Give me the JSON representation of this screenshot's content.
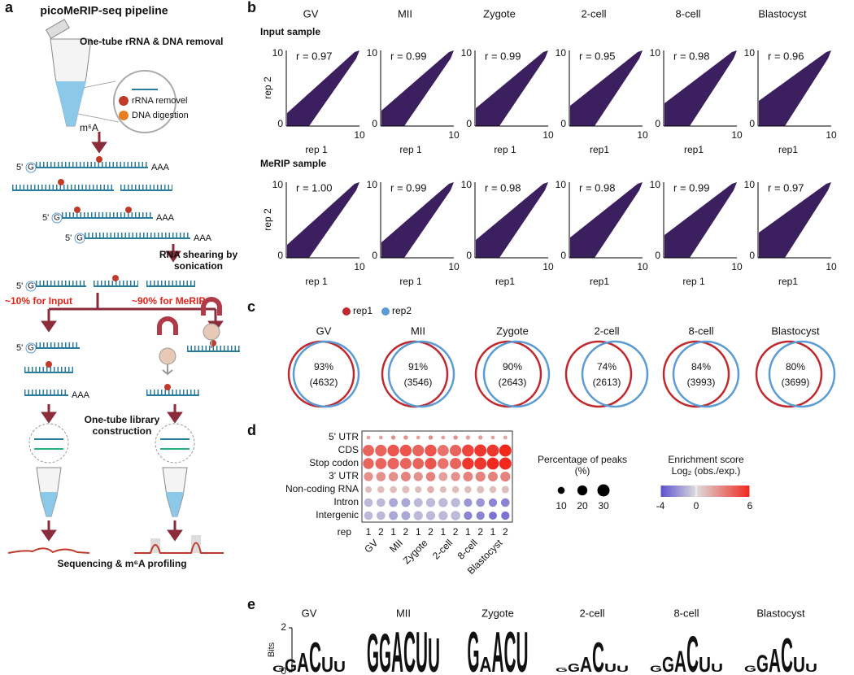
{
  "panel_a": {
    "letter": "a",
    "title": "picoMeRIP-seq pipeline",
    "step1": "One-tube rRNA & DNA removal",
    "rrna": "rRNA removel",
    "dna": "DNA digestion",
    "m6a": "m⁶A",
    "five_prime": "5'",
    "g": "G",
    "aaa": "AAA",
    "step2": [
      "RNA shearing by",
      "sonication"
    ],
    "input": "~10% for Input",
    "merip": "~90% for MeRIP",
    "step3": [
      "One-tube library",
      "construction"
    ],
    "step4": "Sequencing & m⁶A profiling"
  },
  "stages": [
    "GV",
    "MII",
    "Zygote",
    "2-cell",
    "8-cell",
    "Blastocyst"
  ],
  "panel_b": {
    "letter": "b",
    "tick_min": 0,
    "tick_max": 10,
    "rows": [
      {
        "title": "Input sample",
        "y_label": "rep 2",
        "x_labels": [
          "rep 1",
          "rep 1",
          "rep 1",
          "rep1",
          "rep1",
          "rep1"
        ],
        "r": [
          "r = 0.97",
          "r = 0.99",
          "r = 0.99",
          "r = 0.95",
          "r = 0.98",
          "r = 0.96"
        ]
      },
      {
        "title": "MeRIP sample",
        "y_label": "rep 2",
        "x_labels": [
          "rep 1",
          "rep 1",
          "rep1",
          "rep1",
          "rep 1",
          "rep1"
        ],
        "r": [
          "r = 1.00",
          "r = 0.99",
          "r = 0.98",
          "r = 0.98",
          "r = 0.99",
          "r = 0.97"
        ]
      }
    ]
  },
  "panel_c": {
    "letter": "c",
    "legend": [
      "rep1",
      "rep2"
    ],
    "percent": [
      "93%",
      "91%",
      "90%",
      "74%",
      "84%",
      "80%"
    ],
    "counts": [
      "(4632)",
      "(3546)",
      "(2643)",
      "(2613)",
      "(3993)",
      "(3699)"
    ]
  },
  "panel_d": {
    "letter": "d",
    "rows": [
      "5' UTR",
      "CDS",
      "Stop codon",
      "3' UTR",
      "Non-coding RNA",
      "Intron",
      "Intergenic"
    ],
    "rep_label": "rep",
    "reps": [
      "1",
      "2"
    ],
    "size": [
      [
        3,
        3,
        4,
        4,
        3,
        4,
        3,
        4,
        4,
        4,
        3,
        3
      ],
      [
        26,
        27,
        28,
        28,
        27,
        28,
        26,
        27,
        29,
        30,
        29,
        30
      ],
      [
        24,
        25,
        27,
        26,
        25,
        27,
        24,
        26,
        28,
        30,
        29,
        30
      ],
      [
        17,
        18,
        18,
        19,
        17,
        18,
        16,
        17,
        19,
        20,
        19,
        20
      ],
      [
        9,
        10,
        10,
        11,
        9,
        10,
        9,
        10,
        10,
        11,
        10,
        11
      ],
      [
        15,
        15,
        16,
        16,
        16,
        17,
        17,
        17,
        14,
        15,
        14,
        15
      ],
      [
        15,
        15,
        16,
        16,
        17,
        17,
        17,
        18,
        14,
        14,
        13,
        14
      ]
    ],
    "score": [
      [
        2,
        2,
        2.5,
        2.5,
        2,
        2.5,
        2,
        2.5,
        2,
        2,
        2,
        2
      ],
      [
        4,
        4,
        4.5,
        4.5,
        4,
        4.5,
        3.5,
        4,
        5,
        5.5,
        5.5,
        6
      ],
      [
        4,
        4,
        4,
        4,
        4,
        4.5,
        3.5,
        4,
        5.5,
        5.5,
        6,
        6
      ],
      [
        2.5,
        2.5,
        2.5,
        3,
        2.5,
        3,
        2,
        2.5,
        3,
        3,
        3,
        3
      ],
      [
        1,
        1,
        1,
        1,
        1,
        1.5,
        1,
        1,
        1,
        1,
        1,
        1
      ],
      [
        -1,
        -1,
        -1.5,
        -1.5,
        -1,
        -1,
        -1,
        -1,
        -2,
        -2,
        -2.5,
        -2.5
      ],
      [
        -1,
        -1,
        -1.5,
        -1.5,
        -1,
        -1,
        -1,
        -1,
        -2.5,
        -2.5,
        -3,
        -3
      ]
    ],
    "size_title": [
      "Percentage of peaks",
      "(%)"
    ],
    "size_legend": [
      10,
      20,
      30
    ],
    "color_title": [
      "Enrichment score",
      "Log₂ (obs./exp.)"
    ],
    "color_legend": [
      -4,
      0,
      6
    ],
    "colors": [
      "#5a4fcf",
      "#dcdcdc",
      "#f0281e"
    ]
  },
  "panel_e": {
    "letter": "e",
    "y_label": "Bits",
    "yticks": [
      0,
      2
    ],
    "letter_colors": {
      "A": "#1e9c3a",
      "C": "#1f3fd6",
      "G": "#f2a20c",
      "U": "#e3231b"
    },
    "logos": [
      {
        "letters": [
          "G",
          "G",
          "A",
          "C",
          "U",
          "U"
        ],
        "bits": [
          0.3,
          0.6,
          0.9,
          1.4,
          0.7,
          0.5
        ]
      },
      {
        "letters": [
          "G",
          "G",
          "A",
          "C",
          "U",
          "U"
        ],
        "bits": [
          1.8,
          1.8,
          1.9,
          1.9,
          1.9,
          1.6
        ]
      },
      {
        "letters": [
          "G",
          "A",
          "A",
          "C",
          "U"
        ],
        "bits": [
          1.9,
          0.7,
          1.9,
          1.9,
          1.9
        ]
      },
      {
        "letters": [
          "G",
          "G",
          "A",
          "C",
          "U",
          "U"
        ],
        "bits": [
          0.2,
          0.4,
          0.7,
          1.4,
          0.4,
          0.3
        ]
      },
      {
        "letters": [
          "G",
          "G",
          "A",
          "C",
          "U",
          "U"
        ],
        "bits": [
          0.3,
          0.7,
          1.0,
          1.7,
          0.7,
          0.4
        ]
      },
      {
        "letters": [
          "G",
          "G",
          "A",
          "C",
          "U",
          "U"
        ],
        "bits": [
          0.3,
          0.8,
          1.1,
          1.6,
          0.7,
          0.4
        ]
      }
    ]
  }
}
